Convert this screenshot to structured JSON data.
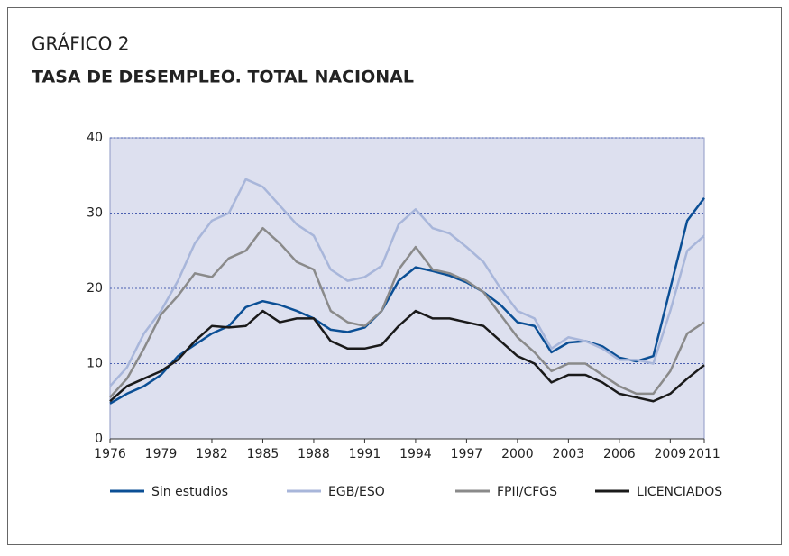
{
  "chart_data": {
    "type": "line",
    "kicker": "GRÁFICO 2",
    "title": "TASA DE DESEMPLEO. TOTAL NACIONAL",
    "x": [
      1976,
      1977,
      1978,
      1979,
      1980,
      1981,
      1982,
      1983,
      1984,
      1985,
      1986,
      1987,
      1988,
      1989,
      1990,
      1991,
      1992,
      1993,
      1994,
      1995,
      1996,
      1997,
      1998,
      1999,
      2000,
      2001,
      2002,
      2003,
      2004,
      2005,
      2006,
      2007,
      2008,
      2009,
      2010,
      2011
    ],
    "xlim": [
      1976,
      2011
    ],
    "xticks": [
      1976,
      1979,
      1982,
      1985,
      1988,
      1991,
      1994,
      1997,
      2000,
      2003,
      2006,
      2009,
      2011
    ],
    "ylim": [
      0,
      40
    ],
    "yticks": [
      0,
      10,
      20,
      30,
      40
    ],
    "grid": true,
    "legend": "bottom",
    "series": [
      {
        "name": "Sin estudios",
        "color": "#0b4f95",
        "values": [
          4.7,
          6,
          7,
          8.5,
          11,
          12.5,
          14,
          15,
          17.5,
          18.3,
          17.8,
          17,
          16,
          14.5,
          14.2,
          14.8,
          17,
          21,
          22.8,
          22.3,
          21.7,
          20.8,
          19.5,
          17.8,
          15.5,
          15,
          11.5,
          12.8,
          13,
          12.3,
          10.8,
          10.3,
          11,
          20,
          29,
          32
        ]
      },
      {
        "name": "EGB/ESO",
        "color": "#a8b6da",
        "values": [
          7,
          9.5,
          14,
          17,
          21,
          26,
          29,
          30,
          34.5,
          33.5,
          31,
          28.5,
          27,
          22.5,
          21,
          21.5,
          23,
          28.5,
          30.5,
          28,
          27.3,
          25.5,
          23.5,
          20,
          17,
          16,
          12,
          13.5,
          13,
          12,
          10.5,
          10.5,
          10,
          17,
          25,
          27
        ]
      },
      {
        "name": "FPII/CFGS",
        "color": "#8a8a8a",
        "values": [
          5.5,
          8,
          12,
          16.5,
          19,
          22,
          21.5,
          24,
          25,
          28,
          26,
          23.5,
          22.5,
          17,
          15.5,
          15,
          17,
          22.5,
          25.5,
          22.5,
          22,
          21,
          19.5,
          16.5,
          13.5,
          11.5,
          9,
          10,
          10,
          8.5,
          7,
          6,
          6,
          9,
          14,
          15.5
        ]
      },
      {
        "name": "LICENCIADOS",
        "color": "#1a1a1a",
        "values": [
          5,
          7,
          8,
          9,
          10.5,
          13,
          15,
          14.8,
          15,
          17,
          15.5,
          16,
          16,
          13,
          12,
          12,
          12.5,
          15,
          17,
          16,
          16,
          15.5,
          15,
          13,
          11,
          10,
          7.5,
          8.5,
          8.5,
          7.5,
          6,
          5.5,
          5,
          6,
          8,
          9.8
        ]
      }
    ]
  }
}
